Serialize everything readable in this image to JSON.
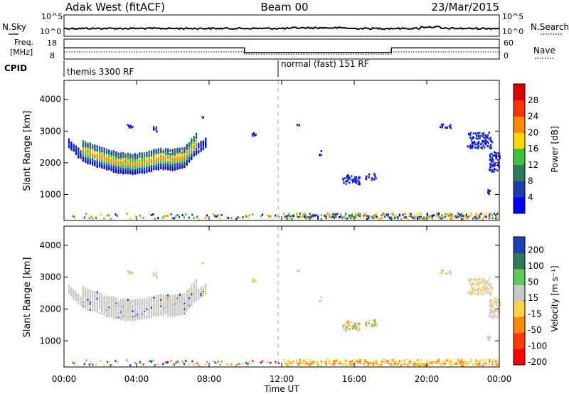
{
  "header": {
    "radar": "Adak West (fitACF)",
    "beam": "Beam 00",
    "date": "23/Mar/2015"
  },
  "noise_panel": {
    "left_label": "N.Sky",
    "right_label": "N.Search",
    "left_ticks": [
      "10^5",
      "10^0"
    ],
    "right_ticks": [
      "10^5",
      "10^0"
    ]
  },
  "freq_panel": {
    "left_label_line1": "Freq.",
    "left_label_line2": "[MHz]",
    "right_label": "Nave",
    "left_ticks": [
      "18",
      "8"
    ],
    "right_ticks": [
      "60",
      "0"
    ],
    "freq_profile": [
      {
        "t": 0.0,
        "v": 13.6
      },
      {
        "t": 9.95,
        "v": 13.6
      },
      {
        "t": 9.95,
        "v": 11.3
      },
      {
        "t": 18.05,
        "v": 11.3
      },
      {
        "t": 18.05,
        "v": 13.6
      },
      {
        "t": 24.0,
        "v": 13.6
      }
    ]
  },
  "cpid": {
    "label": "CPID",
    "segments": [
      {
        "start": 0,
        "label": "themis 3300 RF"
      },
      {
        "start": 12,
        "label": "normal (fast) 151 RF"
      }
    ]
  },
  "power_panel": {
    "ylabel": "Slant Range [km]",
    "yticks": [
      "1000",
      "2000",
      "3000",
      "4000"
    ],
    "colorbar_label": "Power [dB]",
    "colorbar_ticks": [
      "4",
      "8",
      "12",
      "16",
      "20",
      "24",
      "28"
    ],
    "colors": [
      "#0000ff",
      "#1a3fb0",
      "#2e7a5a",
      "#3fbf3f",
      "#ffd700",
      "#ff8c00",
      "#ff3300",
      "#e00000"
    ]
  },
  "velocity_panel": {
    "ylabel": "Slant Range [km]",
    "yticks": [
      "1000",
      "2000",
      "3000",
      "4000"
    ],
    "colorbar_label": "Velocity [m s⁻¹]",
    "colorbar_ticks": [
      "200",
      "100",
      "50",
      "15",
      "-15",
      "-50",
      "-100",
      "-200"
    ],
    "colors": [
      "#1f3fb5",
      "#2e7a5a",
      "#5fc85f",
      "#c8c8c8",
      "#ffd24a",
      "#ff8c00",
      "#ff3b00",
      "#ff0000"
    ]
  },
  "x_axis": {
    "label": "Time UT",
    "ticks": [
      "00:00",
      "04:00",
      "08:00",
      "12:00",
      "16:00",
      "20:00",
      "00:00"
    ]
  },
  "chart_data": [
    {
      "type": "heatmap",
      "title": "Power",
      "ylabel": "Slant Range [km]",
      "xlabel": "Time UT",
      "xlim": [
        0,
        24
      ],
      "ylim": [
        180,
        4600
      ],
      "series": [
        {
          "x": 0.2,
          "range_km": 2500
        },
        {
          "x": 1.0,
          "range_km": 2050
        },
        {
          "x": 2.0,
          "range_km": 1850
        },
        {
          "x": 3.0,
          "range_km": 1680
        },
        {
          "x": 3.8,
          "range_km": 1640
        },
        {
          "x": 4.5,
          "range_km": 1700
        },
        {
          "x": 5.3,
          "range_km": 1820
        },
        {
          "x": 6.0,
          "range_km": 1780
        },
        {
          "x": 6.6,
          "range_km": 1850
        },
        {
          "x": 7.2,
          "range_km": 2250
        },
        {
          "x": 7.8,
          "range_km": 2520
        },
        {
          "x": 15.3,
          "range_km": 1400
        },
        {
          "x": 16.5,
          "range_km": 1450
        },
        {
          "x": 22.6,
          "range_km": 2800
        },
        {
          "x": 23.8,
          "range_km": 1700
        }
      ]
    },
    {
      "type": "heatmap",
      "title": "Velocity",
      "ylabel": "Slant Range [km]",
      "xlabel": "Time UT",
      "xlim": [
        0,
        24
      ],
      "ylim": [
        180,
        4600
      ],
      "series": [
        {
          "x": 0.2,
          "range_km": 2500
        },
        {
          "x": 1.0,
          "range_km": 2050
        },
        {
          "x": 3.0,
          "range_km": 1680
        },
        {
          "x": 4.5,
          "range_km": 1700
        },
        {
          "x": 6.0,
          "range_km": 1780
        },
        {
          "x": 7.8,
          "range_km": 2520
        },
        {
          "x": 15.3,
          "range_km": 1300
        },
        {
          "x": 16.8,
          "range_km": 1500
        },
        {
          "x": 22.6,
          "range_km": 2800
        },
        {
          "x": 23.8,
          "range_km": 1700
        }
      ]
    }
  ]
}
